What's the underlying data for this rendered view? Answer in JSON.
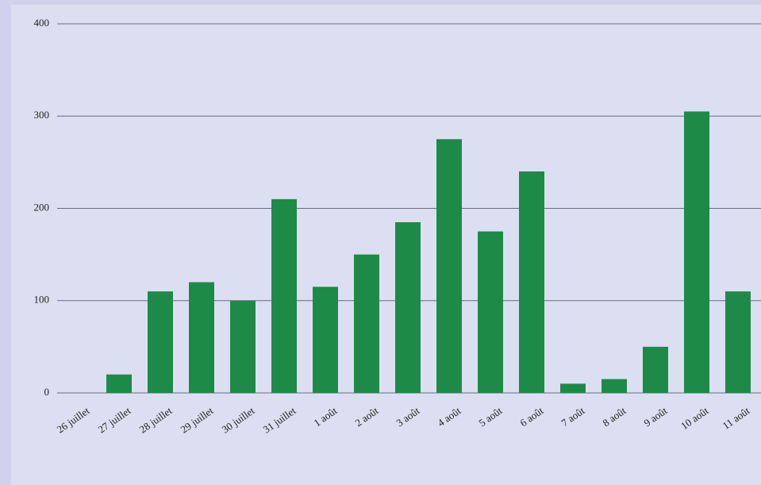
{
  "chart_data": {
    "type": "bar",
    "categories": [
      "26 juillet",
      "27 juillet",
      "28 juillet",
      "29 juillet",
      "30 juillet",
      "31 juillet",
      "1 août",
      "2 août",
      "3 août",
      "4 août",
      "5 août",
      "6 août",
      "7 août",
      "8 août",
      "9 août",
      "10 août",
      "11 août"
    ],
    "values": [
      0,
      20,
      110,
      120,
      100,
      210,
      115,
      150,
      185,
      275,
      175,
      240,
      10,
      15,
      50,
      305,
      110
    ],
    "color": "#1e8a48",
    "ylim": [
      0,
      400
    ],
    "yticks": [
      0,
      100,
      200,
      300,
      400
    ],
    "grid": true
  }
}
